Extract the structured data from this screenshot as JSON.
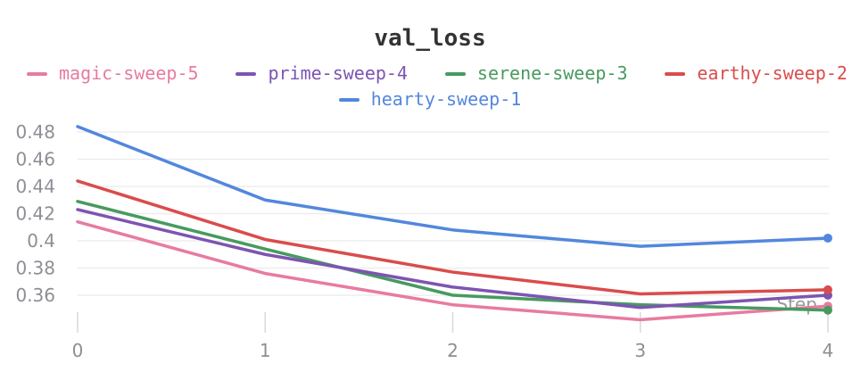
{
  "chart": {
    "title": "val_loss",
    "y_ticks": [
      "0.48",
      "0.46",
      "0.44",
      "0.42",
      "0.4",
      "0.38",
      "0.36"
    ],
    "x_ticks": [
      "0",
      "1",
      "2",
      "3",
      "4"
    ]
  },
  "chart_data": {
    "type": "line",
    "title": "val_loss",
    "xlabel": "Step",
    "ylabel": "",
    "x": [
      0,
      1,
      2,
      3,
      4
    ],
    "series": [
      {
        "name": "magic-sweep-5",
        "color": "#E87B9F",
        "values": [
          0.414,
          0.376,
          0.353,
          0.342,
          0.352
        ]
      },
      {
        "name": "prime-sweep-4",
        "color": "#7D54B2",
        "values": [
          0.423,
          0.39,
          0.366,
          0.351,
          0.36
        ]
      },
      {
        "name": "serene-sweep-3",
        "color": "#479A5F",
        "values": [
          0.429,
          0.394,
          0.36,
          0.353,
          0.349
        ]
      },
      {
        "name": "earthy-sweep-2",
        "color": "#DA4C4C",
        "values": [
          0.444,
          0.401,
          0.377,
          0.361,
          0.364
        ]
      },
      {
        "name": "hearty-sweep-1",
        "color": "#5387DD",
        "values": [
          0.484,
          0.43,
          0.408,
          0.396,
          0.402
        ]
      }
    ],
    "y_tick_values": [
      0.48,
      0.46,
      0.44,
      0.42,
      0.4,
      0.38,
      0.36
    ],
    "xlim": [
      0,
      4
    ],
    "ylim": [
      0.333,
      0.49
    ],
    "grid": true,
    "legend_position": "top",
    "end_markers": true
  },
  "colors": {
    "background": "#ffffff",
    "title_text": "#333336",
    "gridline": "#ededed",
    "tick": "#d9d9d9",
    "axis_label": "#8e8e96",
    "axis_title": "#999aa0"
  }
}
